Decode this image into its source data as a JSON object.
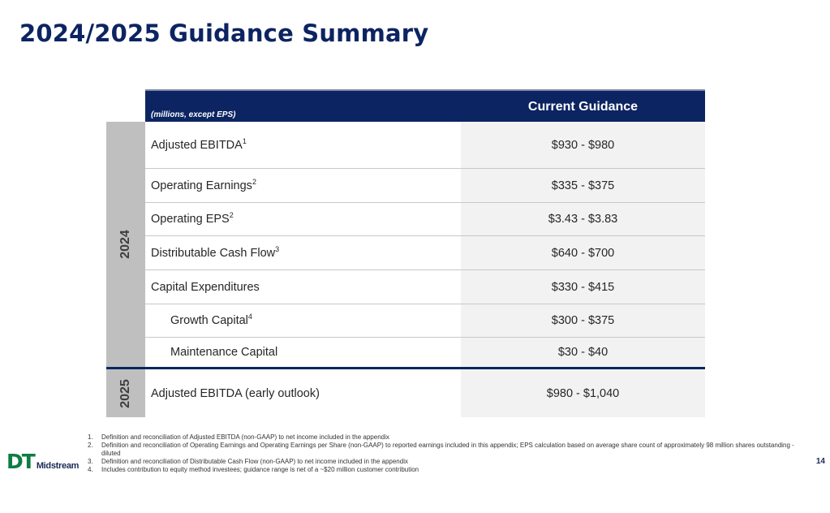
{
  "title": "2024/2025 Guidance Summary",
  "table": {
    "unit_label": "(millions, except EPS)",
    "column_header": "Current Guidance",
    "year_2024": "2024",
    "year_2025": "2025",
    "rows_2024": [
      {
        "label": "Adjusted EBITDA",
        "sup": "1",
        "value": "$930 - $980"
      },
      {
        "label": "Operating Earnings",
        "sup": "2",
        "value": "$335 - $375"
      },
      {
        "label": "Operating EPS",
        "sup": "2",
        "value": "$3.43 - $3.83"
      },
      {
        "label": "Distributable Cash Flow",
        "sup": "3",
        "value": "$640 - $700"
      },
      {
        "label": "Capital Expenditures",
        "sup": "",
        "value": "$330 - $415"
      },
      {
        "label": "Growth Capital",
        "sup": "4",
        "value": "$300 - $375"
      },
      {
        "label": "Maintenance Capital",
        "sup": "",
        "value": "$30 - $40"
      }
    ],
    "rows_2025": [
      {
        "label": "Adjusted EBITDA (early outlook)",
        "sup": "",
        "value": "$980 - $1,040"
      }
    ]
  },
  "footnotes": [
    {
      "num": "1.",
      "text": "Definition and reconciliation of Adjusted EBITDA (non-GAAP) to net income included in the appendix"
    },
    {
      "num": "2.",
      "text": "Definition and reconciliation of Operating Earnings and Operating Earnings per Share (non-GAAP) to reported earnings included in this appendix; EPS calculation based on average share count of approximately 98 million shares outstanding - diluted"
    },
    {
      "num": "3.",
      "text": "Definition and reconciliation of Distributable Cash Flow (non-GAAP) to net income included in the appendix"
    },
    {
      "num": "4.",
      "text": "Includes contribution to equity method investees; guidance range is net of a ~$20 million customer contribution"
    }
  ],
  "logo": {
    "mark": "DT",
    "name": "Midstream"
  },
  "page_number": "14",
  "colors": {
    "navy": "#0c2461",
    "logo_green": "#0c7d43",
    "year_band": "#bfbfbf",
    "value_cell": "#f2f2f2"
  }
}
